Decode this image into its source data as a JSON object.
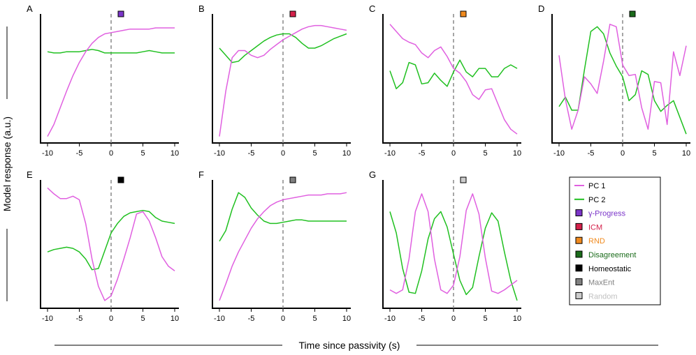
{
  "figure": {
    "xlabel": "Time since passivity (s)",
    "ylabel": "Model response (a.u.)"
  },
  "legend": {
    "items": [
      {
        "label": "PC 1",
        "kind": "line",
        "color": "#e060e0",
        "text_color": "#000000"
      },
      {
        "label": "PC 2",
        "kind": "line",
        "color": "#20c020",
        "text_color": "#000000"
      },
      {
        "label": "γ-Progress",
        "kind": "square",
        "color": "#7b35c9",
        "text_color": "#7b35c9"
      },
      {
        "label": "ICM",
        "kind": "square",
        "color": "#d4204a",
        "text_color": "#d4204a"
      },
      {
        "label": "RND",
        "kind": "square",
        "color": "#f08a1e",
        "text_color": "#f08a1e"
      },
      {
        "label": "Disagreement",
        "kind": "square",
        "color": "#1a6b1a",
        "text_color": "#1a6b1a"
      },
      {
        "label": "Homeostatic",
        "kind": "square",
        "color": "#000000",
        "text_color": "#000000"
      },
      {
        "label": "MaxEnt",
        "kind": "square",
        "color": "#808080",
        "text_color": "#808080"
      },
      {
        "label": "Random",
        "kind": "square",
        "color": "#cccccc",
        "text_color": "#c0c0c0"
      }
    ]
  },
  "chart_data": [
    {
      "type": "line",
      "panel": "A",
      "model": "γ-Progress",
      "marker_color": "#7b35c9",
      "x": [
        -10,
        -9,
        -8,
        -7,
        -6,
        -5,
        -4,
        -3,
        -2,
        -1,
        0,
        1,
        2,
        3,
        4,
        5,
        6,
        7,
        8,
        9,
        10
      ],
      "xlim": [
        -10,
        10
      ],
      "xticks": [
        -10,
        -5,
        0,
        5,
        10
      ],
      "ylim": [
        0,
        1
      ],
      "series": [
        {
          "name": "PC 1",
          "values": [
            0.02,
            0.12,
            0.26,
            0.4,
            0.53,
            0.64,
            0.73,
            0.8,
            0.85,
            0.88,
            0.89,
            0.9,
            0.91,
            0.92,
            0.92,
            0.92,
            0.92,
            0.93,
            0.93,
            0.93,
            0.93
          ]
        },
        {
          "name": "PC 2",
          "values": [
            0.73,
            0.72,
            0.72,
            0.73,
            0.73,
            0.73,
            0.74,
            0.75,
            0.74,
            0.72,
            0.72,
            0.72,
            0.72,
            0.72,
            0.72,
            0.73,
            0.74,
            0.73,
            0.72,
            0.72,
            0.72
          ]
        }
      ]
    },
    {
      "type": "line",
      "panel": "B",
      "model": "ICM",
      "marker_color": "#d4204a",
      "x": [
        -10,
        -9,
        -8,
        -7,
        -6,
        -5,
        -4,
        -3,
        -2,
        -1,
        0,
        1,
        2,
        3,
        4,
        5,
        6,
        7,
        8,
        9,
        10
      ],
      "xlim": [
        -10,
        10
      ],
      "xticks": [
        -10,
        -5,
        0,
        5,
        10
      ],
      "ylim": [
        0,
        1
      ],
      "series": [
        {
          "name": "PC 1",
          "values": [
            0.02,
            0.4,
            0.68,
            0.74,
            0.74,
            0.7,
            0.68,
            0.7,
            0.75,
            0.79,
            0.83,
            0.86,
            0.89,
            0.92,
            0.94,
            0.95,
            0.95,
            0.94,
            0.93,
            0.92,
            0.91
          ]
        },
        {
          "name": "PC 2",
          "values": [
            0.76,
            0.7,
            0.64,
            0.65,
            0.7,
            0.74,
            0.78,
            0.82,
            0.85,
            0.87,
            0.88,
            0.88,
            0.85,
            0.8,
            0.76,
            0.76,
            0.78,
            0.81,
            0.84,
            0.86,
            0.88
          ]
        }
      ]
    },
    {
      "type": "line",
      "panel": "C",
      "model": "RND",
      "marker_color": "#f08a1e",
      "x": [
        -10,
        -9,
        -8,
        -7,
        -6,
        -5,
        -4,
        -3,
        -2,
        -1,
        0,
        1,
        2,
        3,
        4,
        5,
        6,
        7,
        8,
        9,
        10
      ],
      "xlim": [
        -10,
        10
      ],
      "xticks": [
        -10,
        -5,
        0,
        5,
        10
      ],
      "ylim": [
        0,
        1
      ],
      "series": [
        {
          "name": "PC 1",
          "values": [
            0.96,
            0.9,
            0.84,
            0.81,
            0.79,
            0.72,
            0.68,
            0.74,
            0.77,
            0.69,
            0.59,
            0.55,
            0.48,
            0.37,
            0.33,
            0.41,
            0.42,
            0.29,
            0.16,
            0.08,
            0.04
          ]
        },
        {
          "name": "PC 2",
          "values": [
            0.57,
            0.42,
            0.47,
            0.64,
            0.62,
            0.46,
            0.47,
            0.55,
            0.49,
            0.44,
            0.56,
            0.66,
            0.56,
            0.52,
            0.59,
            0.59,
            0.52,
            0.52,
            0.59,
            0.62,
            0.59
          ]
        }
      ]
    },
    {
      "type": "line",
      "panel": "D",
      "model": "Disagreement",
      "marker_color": "#1a6b1a",
      "x": [
        -10,
        -9,
        -8,
        -7,
        -6,
        -5,
        -4,
        -3,
        -2,
        -1,
        0,
        1,
        2,
        3,
        4,
        5,
        6,
        7,
        8,
        9,
        10
      ],
      "xlim": [
        -10,
        10
      ],
      "xticks": [
        -10,
        -5,
        0,
        5,
        10
      ],
      "ylim": [
        0,
        1
      ],
      "series": [
        {
          "name": "PC 1",
          "values": [
            0.7,
            0.33,
            0.08,
            0.24,
            0.52,
            0.46,
            0.38,
            0.65,
            0.96,
            0.94,
            0.62,
            0.53,
            0.54,
            0.26,
            0.08,
            0.48,
            0.47,
            0.12,
            0.73,
            0.53,
            0.78
          ]
        },
        {
          "name": "PC 2",
          "values": [
            0.27,
            0.35,
            0.24,
            0.24,
            0.58,
            0.9,
            0.94,
            0.88,
            0.72,
            0.61,
            0.52,
            0.32,
            0.37,
            0.57,
            0.54,
            0.32,
            0.23,
            0.28,
            0.32,
            0.18,
            0.04
          ]
        }
      ]
    },
    {
      "type": "line",
      "panel": "E",
      "model": "Homeostatic",
      "marker_color": "#000000",
      "x": [
        -10,
        -9,
        -8,
        -7,
        -6,
        -5,
        -4,
        -3,
        -2,
        -1,
        0,
        1,
        2,
        3,
        4,
        5,
        6,
        7,
        8,
        9,
        10
      ],
      "xlim": [
        -10,
        10
      ],
      "xticks": [
        -10,
        -5,
        0,
        5,
        10
      ],
      "ylim": [
        0,
        1
      ],
      "series": [
        {
          "name": "PC 1",
          "values": [
            0.98,
            0.93,
            0.89,
            0.89,
            0.91,
            0.88,
            0.68,
            0.38,
            0.15,
            0.03,
            0.07,
            0.21,
            0.38,
            0.56,
            0.76,
            0.78,
            0.7,
            0.56,
            0.4,
            0.32,
            0.28
          ]
        },
        {
          "name": "PC 2",
          "values": [
            0.44,
            0.46,
            0.47,
            0.48,
            0.47,
            0.44,
            0.38,
            0.29,
            0.3,
            0.45,
            0.6,
            0.68,
            0.74,
            0.77,
            0.78,
            0.79,
            0.78,
            0.73,
            0.7,
            0.69,
            0.68
          ]
        }
      ]
    },
    {
      "type": "line",
      "panel": "F",
      "model": "MaxEnt",
      "marker_color": "#808080",
      "x": [
        -10,
        -9,
        -8,
        -7,
        -6,
        -5,
        -4,
        -3,
        -2,
        -1,
        0,
        1,
        2,
        3,
        4,
        5,
        6,
        7,
        8,
        9,
        10
      ],
      "xlim": [
        -10,
        10
      ],
      "xticks": [
        -10,
        -5,
        0,
        5,
        10
      ],
      "ylim": [
        0,
        1
      ],
      "series": [
        {
          "name": "PC 1",
          "values": [
            0.03,
            0.17,
            0.32,
            0.44,
            0.54,
            0.64,
            0.72,
            0.78,
            0.83,
            0.86,
            0.88,
            0.89,
            0.9,
            0.91,
            0.92,
            0.92,
            0.92,
            0.93,
            0.93,
            0.93,
            0.94
          ]
        },
        {
          "name": "PC 2",
          "values": [
            0.53,
            0.62,
            0.8,
            0.94,
            0.9,
            0.81,
            0.75,
            0.7,
            0.68,
            0.68,
            0.69,
            0.7,
            0.71,
            0.71,
            0.7,
            0.7,
            0.7,
            0.7,
            0.7,
            0.7,
            0.7
          ]
        }
      ]
    },
    {
      "type": "line",
      "panel": "G",
      "model": "Random",
      "marker_color": "#cccccc",
      "x": [
        -10,
        -9,
        -8,
        -7,
        -6,
        -5,
        -4,
        -3,
        -2,
        -1,
        0,
        1,
        2,
        3,
        4,
        5,
        6,
        7,
        8,
        9,
        10
      ],
      "xlim": [
        -10,
        10
      ],
      "xticks": [
        -10,
        -5,
        0,
        5,
        10
      ],
      "ylim": [
        0,
        1
      ],
      "series": [
        {
          "name": "PC 1",
          "values": [
            0.12,
            0.09,
            0.12,
            0.38,
            0.78,
            0.93,
            0.78,
            0.38,
            0.12,
            0.09,
            0.16,
            0.4,
            0.79,
            0.93,
            0.76,
            0.39,
            0.11,
            0.09,
            0.12,
            0.16,
            0.2
          ]
        },
        {
          "name": "PC 2",
          "values": [
            0.78,
            0.6,
            0.3,
            0.1,
            0.09,
            0.28,
            0.55,
            0.72,
            0.78,
            0.65,
            0.42,
            0.2,
            0.08,
            0.14,
            0.4,
            0.64,
            0.77,
            0.7,
            0.44,
            0.2,
            0.03
          ]
        }
      ]
    }
  ]
}
